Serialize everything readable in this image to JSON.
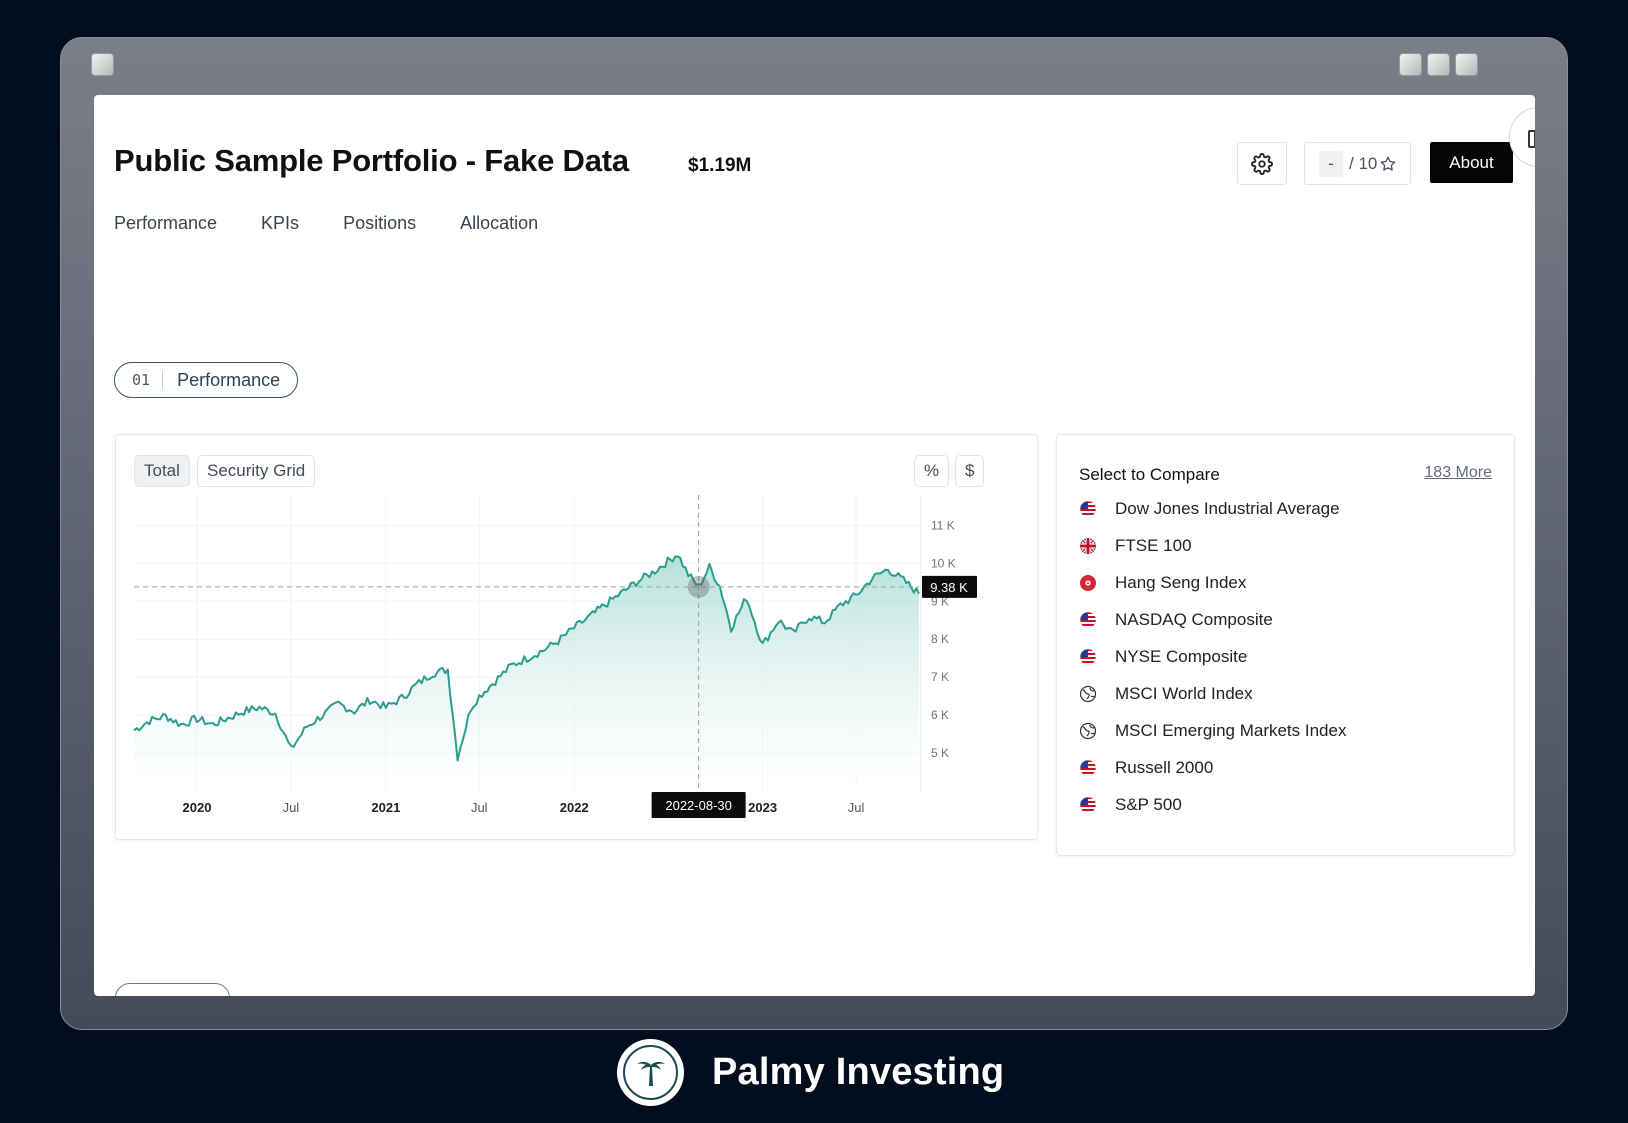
{
  "window": {
    "buttons": [
      "window-minimize",
      "window-maximize",
      "window-close"
    ]
  },
  "header": {
    "title": "Public Sample Portfolio - Fake Data",
    "value": "$1.19M",
    "rating_value": "-",
    "rating_max": "/ 10",
    "about_label": "About"
  },
  "nav": {
    "tabs": [
      "Performance",
      "KPIs",
      "Positions",
      "Allocation"
    ]
  },
  "section": {
    "number": "01",
    "label": "Performance"
  },
  "chart_controls": {
    "total": "Total",
    "security_grid": "Security Grid",
    "percent": "%",
    "dollar": "$"
  },
  "chart_data": {
    "type": "area",
    "x_range": [
      "2019-09-01",
      "2023-10-31"
    ],
    "y_range": [
      4000,
      11800
    ],
    "y_ticks": [
      {
        "value": 5000,
        "label": "5 K"
      },
      {
        "value": 6000,
        "label": "6 K"
      },
      {
        "value": 7000,
        "label": "7 K"
      },
      {
        "value": 8000,
        "label": "8 K"
      },
      {
        "value": 9000,
        "label": "9 K"
      },
      {
        "value": 10000,
        "label": "10 K"
      },
      {
        "value": 11000,
        "label": "11 K"
      }
    ],
    "x_ticks": [
      {
        "date": "2020-01-01",
        "label": "2020",
        "bold": true
      },
      {
        "date": "2020-07-01",
        "label": "Jul",
        "bold": false
      },
      {
        "date": "2021-01-01",
        "label": "2021",
        "bold": true
      },
      {
        "date": "2021-07-01",
        "label": "Jul",
        "bold": false
      },
      {
        "date": "2022-01-01",
        "label": "2022",
        "bold": true
      },
      {
        "date": "2023-01-01",
        "label": "2023",
        "bold": true
      },
      {
        "date": "2023-07-01",
        "label": "Jul",
        "bold": false
      }
    ],
    "points": [
      [
        "2019-09-01",
        5600
      ],
      [
        "2019-10-01",
        5850
      ],
      [
        "2019-11-01",
        5980
      ],
      [
        "2019-12-01",
        5750
      ],
      [
        "2020-01-01",
        5900
      ],
      [
        "2020-02-01",
        5750
      ],
      [
        "2020-03-01",
        5920
      ],
      [
        "2020-04-01",
        6100
      ],
      [
        "2020-05-01",
        6200
      ],
      [
        "2020-06-01",
        6050
      ],
      [
        "2020-07-01",
        5100
      ],
      [
        "2020-08-01",
        5700
      ],
      [
        "2020-09-01",
        6000
      ],
      [
        "2020-10-01",
        6300
      ],
      [
        "2020-11-01",
        6100
      ],
      [
        "2020-12-01",
        6400
      ],
      [
        "2021-01-01",
        6200
      ],
      [
        "2021-02-01",
        6450
      ],
      [
        "2021-03-01",
        6800
      ],
      [
        "2021-04-01",
        7100
      ],
      [
        "2021-05-01",
        7200
      ],
      [
        "2021-05-20",
        4900
      ],
      [
        "2021-06-15",
        6200
      ],
      [
        "2021-07-01",
        6500
      ],
      [
        "2021-08-01",
        6900
      ],
      [
        "2021-09-01",
        7300
      ],
      [
        "2021-10-01",
        7500
      ],
      [
        "2021-11-01",
        7700
      ],
      [
        "2021-12-01",
        7950
      ],
      [
        "2022-01-01",
        8300
      ],
      [
        "2022-02-01",
        8600
      ],
      [
        "2022-03-01",
        8900
      ],
      [
        "2022-04-01",
        9200
      ],
      [
        "2022-05-01",
        9500
      ],
      [
        "2022-06-01",
        9750
      ],
      [
        "2022-07-01",
        10050
      ],
      [
        "2022-07-20",
        10250
      ],
      [
        "2022-08-10",
        9700
      ],
      [
        "2022-08-30",
        9380
      ],
      [
        "2022-09-20",
        9900
      ],
      [
        "2022-10-10",
        9400
      ],
      [
        "2022-11-01",
        8300
      ],
      [
        "2022-12-01",
        9100
      ],
      [
        "2023-01-01",
        7850
      ],
      [
        "2023-02-01",
        8500
      ],
      [
        "2023-03-01",
        8150
      ],
      [
        "2023-04-01",
        8600
      ],
      [
        "2023-05-01",
        8450
      ],
      [
        "2023-06-01",
        8900
      ],
      [
        "2023-07-01",
        9150
      ],
      [
        "2023-08-01",
        9600
      ],
      [
        "2023-09-01",
        9850
      ],
      [
        "2023-10-01",
        9550
      ],
      [
        "2023-10-31",
        9200
      ]
    ],
    "crosshair": {
      "date": "2022-08-30",
      "date_label": "2022-08-30",
      "value": 9380,
      "value_label": "9.38 K"
    },
    "colors": {
      "line": "#2a9d8f",
      "area_top": "#a7dbd2",
      "area_bottom": "#ffffff",
      "grid": "#f1f2f4"
    },
    "grid": true
  },
  "compare": {
    "title": "Select to Compare",
    "more_label": "183 More",
    "items": [
      {
        "label": "Dow Jones Industrial Average",
        "icon": "us-flag-icon"
      },
      {
        "label": "FTSE 100",
        "icon": "uk-flag-icon"
      },
      {
        "label": "Hang Seng Index",
        "icon": "hk-flag-icon"
      },
      {
        "label": "NASDAQ Composite",
        "icon": "us-flag-icon"
      },
      {
        "label": "NYSE Composite",
        "icon": "us-flag-icon"
      },
      {
        "label": "MSCI World Index",
        "icon": "globe-icon"
      },
      {
        "label": "MSCI Emerging Markets Index",
        "icon": "globe-icon"
      },
      {
        "label": "Russell 2000",
        "icon": "us-flag-icon"
      },
      {
        "label": "S&P 500",
        "icon": "us-flag-icon"
      }
    ]
  },
  "brand": {
    "name": "Palmy Investing",
    "logo_icon": "palm-tree-icon"
  }
}
